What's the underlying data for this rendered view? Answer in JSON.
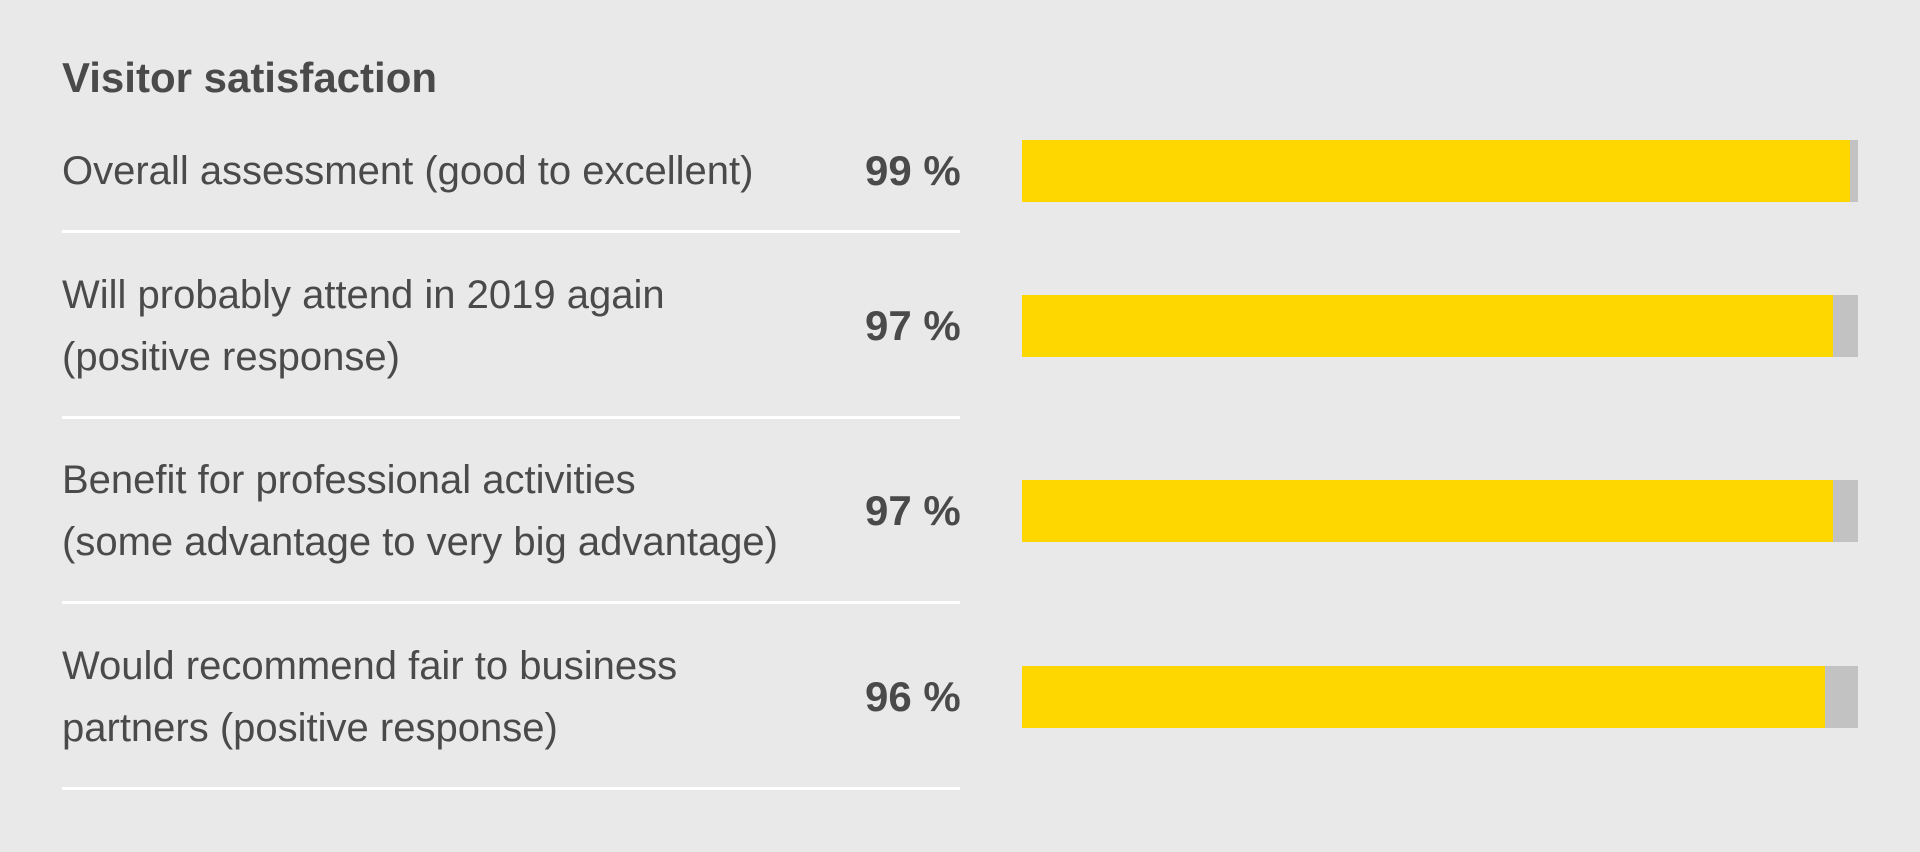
{
  "chart_data": {
    "type": "bar",
    "orientation": "horizontal",
    "title": "Visitor satisfaction",
    "categories": [
      [
        "Overall assessment (good to excellent)"
      ],
      [
        "Will probably attend in 2019 again",
        "(positive response)"
      ],
      [
        "Benefit for professional activities",
        "(some advantage to very big advantage)"
      ],
      [
        "Would recommend fair to business",
        "partners (positive response)"
      ]
    ],
    "values": [
      99,
      97,
      97,
      96
    ],
    "value_labels": [
      "99 %",
      "97 %",
      "97 %",
      "96 %"
    ],
    "ylim": [
      0,
      100
    ],
    "unit": "%",
    "grid": false,
    "colors": {
      "bar": "#ffd700",
      "remainder": "#c2c2c2",
      "background": "#e9e9e9",
      "divider": "#ffffff",
      "text": "#4a4a4a"
    }
  }
}
